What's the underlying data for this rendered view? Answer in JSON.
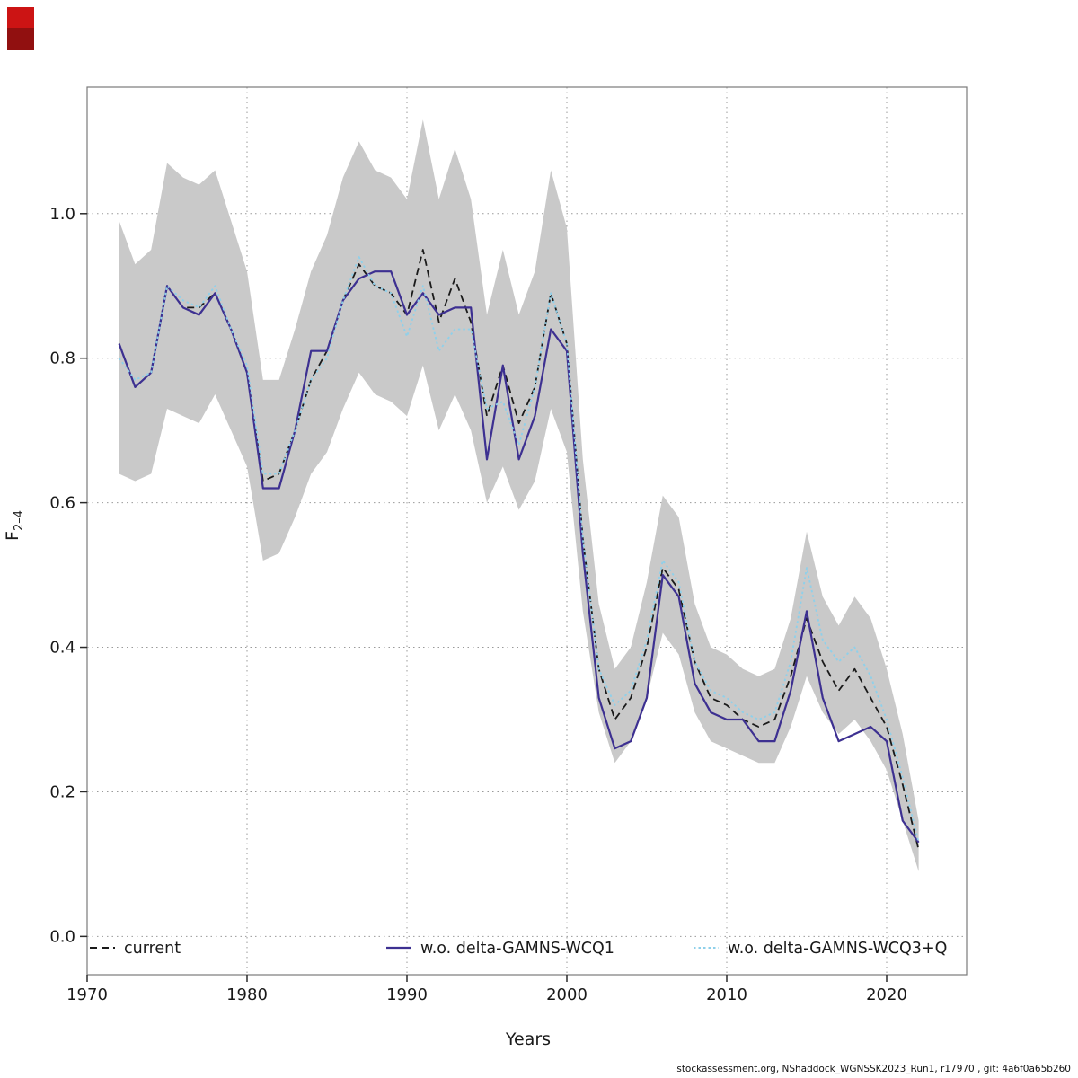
{
  "decor": {
    "red_marker_top_color": "#cc1414",
    "red_marker_bottom_color": "#911010"
  },
  "footer": {
    "text": "stockassessment.org, NShaddock_WGNSSK2023_Run1, r17970 , git: 4a6f0a65b260"
  },
  "chart_data": {
    "type": "line",
    "title": "",
    "xlabel": "Years",
    "ylabel_main": "F",
    "ylabel_sub": "2–4",
    "xlim": [
      1970,
      2025
    ],
    "ylim": [
      -0.053,
      1.175
    ],
    "xticks": [
      1970,
      1980,
      1990,
      2000,
      2010,
      2020
    ],
    "xtick_labels": [
      "1970",
      "1980",
      "1990",
      "2000",
      "2010",
      "2020"
    ],
    "yticks": [
      0.0,
      0.2,
      0.4,
      0.6,
      0.8,
      1.0
    ],
    "ytick_labels": [
      "0.0",
      "0.2",
      "0.4",
      "0.6",
      "0.8",
      "1.0"
    ],
    "grid": "dotted",
    "grid_color": "#9a9a9a",
    "legend_position": "bottom-inside",
    "x": [
      1972,
      1973,
      1974,
      1975,
      1976,
      1977,
      1978,
      1979,
      1980,
      1981,
      1982,
      1983,
      1984,
      1985,
      1986,
      1987,
      1988,
      1989,
      1990,
      1991,
      1992,
      1993,
      1994,
      1995,
      1996,
      1997,
      1998,
      1999,
      2000,
      2001,
      2002,
      2003,
      2004,
      2005,
      2006,
      2007,
      2008,
      2009,
      2010,
      2011,
      2012,
      2013,
      2014,
      2015,
      2016,
      2017,
      2018,
      2019,
      2020,
      2021,
      2022
    ],
    "band": {
      "name": "confidence-band",
      "color": "#c9c9c9",
      "lo": [
        0.64,
        0.63,
        0.64,
        0.73,
        0.72,
        0.71,
        0.75,
        0.7,
        0.65,
        0.52,
        0.53,
        0.58,
        0.64,
        0.67,
        0.73,
        0.78,
        0.75,
        0.74,
        0.72,
        0.79,
        0.7,
        0.75,
        0.7,
        0.6,
        0.65,
        0.59,
        0.63,
        0.73,
        0.67,
        0.45,
        0.31,
        0.24,
        0.27,
        0.33,
        0.42,
        0.39,
        0.31,
        0.27,
        0.26,
        0.25,
        0.24,
        0.24,
        0.29,
        0.36,
        0.31,
        0.28,
        0.3,
        0.27,
        0.23,
        0.16,
        0.09
      ],
      "hi": [
        0.99,
        0.93,
        0.95,
        1.07,
        1.05,
        1.04,
        1.06,
        0.99,
        0.92,
        0.77,
        0.77,
        0.84,
        0.92,
        0.97,
        1.05,
        1.1,
        1.06,
        1.05,
        1.02,
        1.13,
        1.02,
        1.09,
        1.02,
        0.86,
        0.95,
        0.86,
        0.92,
        1.06,
        0.98,
        0.66,
        0.46,
        0.37,
        0.4,
        0.49,
        0.61,
        0.58,
        0.46,
        0.4,
        0.39,
        0.37,
        0.36,
        0.37,
        0.44,
        0.56,
        0.47,
        0.43,
        0.47,
        0.44,
        0.37,
        0.28,
        0.16
      ]
    },
    "series": [
      {
        "name": "current",
        "color": "#1a1a1a",
        "style": "dashed",
        "width": 1.8,
        "values": [
          0.82,
          0.76,
          0.78,
          0.9,
          0.87,
          0.87,
          0.89,
          0.84,
          0.78,
          0.63,
          0.64,
          0.7,
          0.77,
          0.81,
          0.88,
          0.93,
          0.9,
          0.89,
          0.86,
          0.95,
          0.85,
          0.91,
          0.85,
          0.72,
          0.79,
          0.71,
          0.76,
          0.89,
          0.82,
          0.55,
          0.37,
          0.3,
          0.33,
          0.4,
          0.51,
          0.48,
          0.38,
          0.33,
          0.32,
          0.3,
          0.29,
          0.3,
          0.36,
          0.44,
          0.38,
          0.34,
          0.37,
          0.33,
          0.29,
          0.21,
          0.12
        ]
      },
      {
        "name": "w.o. delta-GAMNS-WCQ1",
        "color": "#3d3091",
        "style": "solid",
        "width": 2.2,
        "values": [
          0.82,
          0.76,
          0.78,
          0.9,
          0.87,
          0.86,
          0.89,
          0.84,
          0.78,
          0.62,
          0.62,
          0.7,
          0.81,
          0.81,
          0.88,
          0.91,
          0.92,
          0.92,
          0.86,
          0.89,
          0.86,
          0.87,
          0.87,
          0.66,
          0.79,
          0.66,
          0.72,
          0.84,
          0.81,
          0.53,
          0.33,
          0.26,
          0.27,
          0.33,
          0.5,
          0.47,
          0.35,
          0.31,
          0.3,
          0.3,
          0.27,
          0.27,
          0.34,
          0.45,
          0.33,
          0.27,
          0.28,
          0.29,
          0.27,
          0.16,
          0.13
        ]
      },
      {
        "name": "w.o. delta-GAMNS-WCQ3+Q",
        "color": "#8fd0ea",
        "style": "dotted",
        "width": 1.9,
        "values": [
          0.8,
          0.77,
          0.78,
          0.9,
          0.88,
          0.87,
          0.9,
          0.84,
          0.79,
          0.64,
          0.64,
          0.7,
          0.77,
          0.8,
          0.88,
          0.94,
          0.9,
          0.89,
          0.83,
          0.9,
          0.81,
          0.84,
          0.84,
          0.73,
          0.74,
          0.68,
          0.76,
          0.89,
          0.82,
          0.55,
          0.37,
          0.32,
          0.34,
          0.41,
          0.52,
          0.49,
          0.38,
          0.34,
          0.33,
          0.31,
          0.3,
          0.31,
          0.38,
          0.51,
          0.41,
          0.38,
          0.4,
          0.36,
          0.3,
          0.22,
          0.13
        ]
      }
    ]
  }
}
